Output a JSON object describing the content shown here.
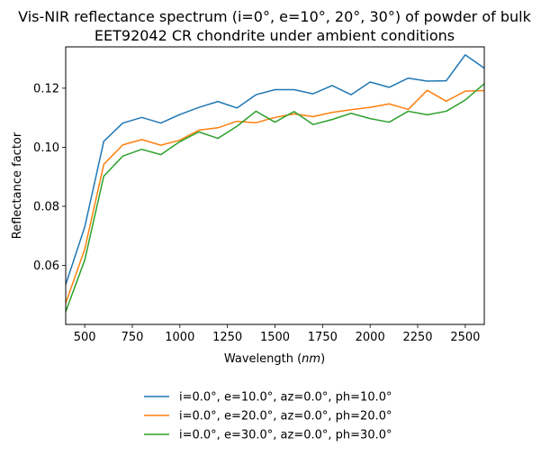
{
  "chart_data": {
    "type": "line",
    "title_line1": "Vis-NIR reflectance spectrum (i=0°, e=10°, 20°, 30°) of powder of bulk",
    "title_line2": "EET92042 CR chondrite under ambient conditions",
    "xlabel_prefix": "Wavelength (",
    "xlabel_unit": "nm",
    "xlabel_suffix": ")",
    "ylabel": "Reflectance factor",
    "xlim": [
      400,
      2600
    ],
    "ylim": [
      0.04,
      0.134
    ],
    "xticks": [
      500,
      750,
      1000,
      1250,
      1500,
      1750,
      2000,
      2250,
      2500
    ],
    "xtick_labels": [
      "500",
      "750",
      "1000",
      "1250",
      "1500",
      "1750",
      "2000",
      "2250",
      "2500"
    ],
    "yticks": [
      0.06,
      0.08,
      0.1,
      0.12
    ],
    "ytick_labels": [
      "0.06",
      "0.08",
      "0.10",
      "0.12"
    ],
    "grid": false,
    "legend_position": "below",
    "x": [
      400,
      500,
      600,
      700,
      800,
      900,
      1000,
      1100,
      1200,
      1300,
      1400,
      1500,
      1600,
      1700,
      1800,
      1900,
      2000,
      2100,
      2200,
      2300,
      2400,
      2500,
      2600
    ],
    "series": [
      {
        "name": "i=0.0°, e=10.0°, az=0.0°, ph=10.0°",
        "color": "#1f77b4",
        "values": [
          0.0535,
          0.073,
          0.102,
          0.1082,
          0.1101,
          0.1082,
          0.1111,
          0.1135,
          0.1155,
          0.1133,
          0.1178,
          0.1195,
          0.1195,
          0.1181,
          0.1209,
          0.1178,
          0.1221,
          0.1203,
          0.1234,
          0.1224,
          0.1225,
          0.1313,
          0.1268
        ]
      },
      {
        "name": "i=0.0°, e=20.0°, az=0.0°, ph=20.0°",
        "color": "#ff7f0e",
        "values": [
          0.0472,
          0.0655,
          0.0942,
          0.1008,
          0.1026,
          0.1007,
          0.1024,
          0.1058,
          0.1066,
          0.1088,
          0.1083,
          0.1101,
          0.1113,
          0.1104,
          0.1118,
          0.1127,
          0.1135,
          0.1147,
          0.1128,
          0.1193,
          0.1156,
          0.119,
          0.1192
        ]
      },
      {
        "name": "i=0.0°, e=30.0°, az=0.0°, ph=30.0°",
        "color": "#2ca02c",
        "values": [
          0.0443,
          0.0618,
          0.0902,
          0.097,
          0.0993,
          0.0975,
          0.1019,
          0.1052,
          0.103,
          0.1071,
          0.1122,
          0.1085,
          0.1121,
          0.1077,
          0.1094,
          0.1115,
          0.1097,
          0.1085,
          0.1122,
          0.111,
          0.1122,
          0.116,
          0.1215
        ]
      }
    ]
  }
}
